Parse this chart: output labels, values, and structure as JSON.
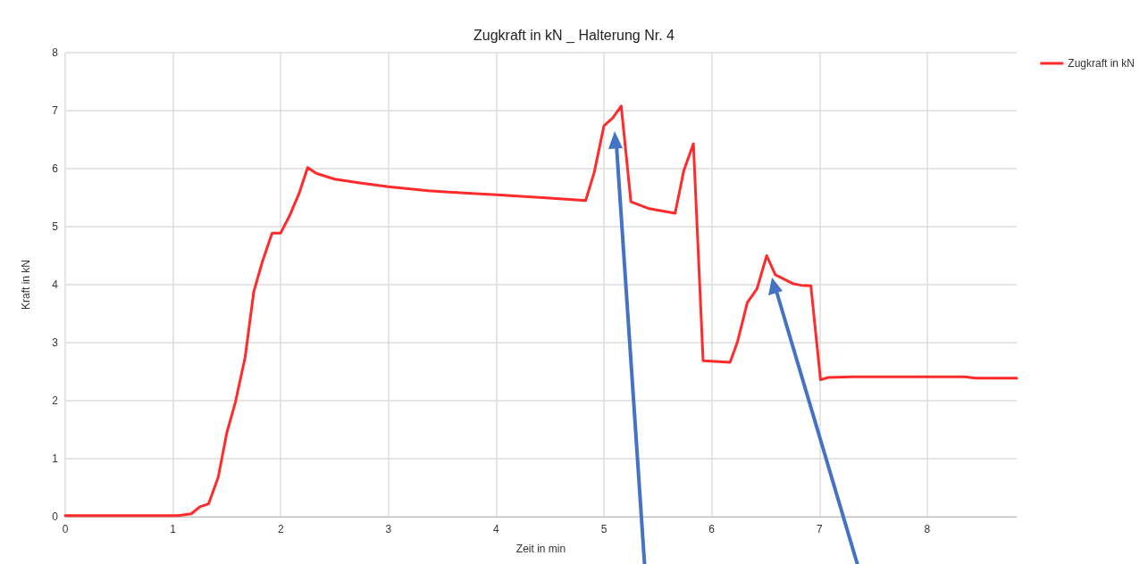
{
  "chart_data": {
    "type": "line",
    "title": "Zugkraft in kN _ Halterung Nr. 4",
    "xlabel": "Zeit in min",
    "ylabel": "Kraft in kN",
    "xlim": [
      0,
      8.83
    ],
    "xticks": [
      0,
      1,
      2,
      3,
      4,
      5,
      6,
      7,
      8
    ],
    "ylim": [
      0,
      8
    ],
    "yticks": [
      0,
      1,
      2,
      3,
      4,
      5,
      6,
      7,
      8
    ],
    "grid": true,
    "legend": "top right",
    "marker": "none",
    "line_style": "solid",
    "series": [
      {
        "name": "Zugkraft in kN",
        "color": "#ff2a2a",
        "x": [
          0,
          0.5,
          1.05,
          1.17,
          1.25,
          1.33,
          1.42,
          1.5,
          1.58,
          1.67,
          1.75,
          1.83,
          1.92,
          2.0,
          2.08,
          2.17,
          2.25,
          2.33,
          2.5,
          2.75,
          3.0,
          3.37,
          3.7,
          4.0,
          4.53,
          4.83,
          4.91,
          5.0,
          5.08,
          5.16,
          5.25,
          5.42,
          5.66,
          5.74,
          5.83,
          5.92,
          6.17,
          6.24,
          6.33,
          6.42,
          6.51,
          6.59,
          6.75,
          6.83,
          6.92,
          7.01,
          7.08,
          7.31,
          8.35,
          8.45,
          8.83
        ],
        "values": [
          0.02,
          0.02,
          0.02,
          0.05,
          0.17,
          0.22,
          0.68,
          1.45,
          1.98,
          2.75,
          3.88,
          4.4,
          4.89,
          4.89,
          5.18,
          5.57,
          6.02,
          5.92,
          5.82,
          5.75,
          5.69,
          5.62,
          5.58,
          5.55,
          5.49,
          5.45,
          5.94,
          6.74,
          6.87,
          7.08,
          5.43,
          5.31,
          5.23,
          5.96,
          6.43,
          2.69,
          2.66,
          3.02,
          3.69,
          3.93,
          4.5,
          4.17,
          4.02,
          3.99,
          3.98,
          2.36,
          2.4,
          2.41,
          2.41,
          2.39,
          2.39
        ]
      }
    ]
  }
}
